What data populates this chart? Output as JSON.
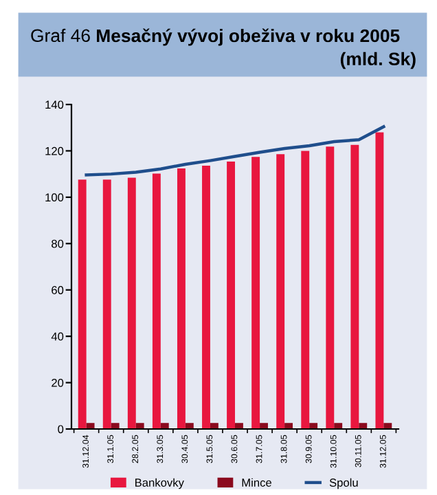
{
  "chart_data": {
    "type": "bar",
    "title": "Graf 46 Mesačný vývoj obeživa v roku 2005",
    "subtitle": "(mld. Sk)",
    "categories": [
      "31.12.04",
      "31.1.05",
      "28.2.05",
      "31.3.05",
      "30.4.05",
      "31.5.05",
      "30.6.05",
      "31.7.05",
      "31.8.05",
      "30.9.05",
      "31.10.05",
      "30.11.05",
      "31.12.05"
    ],
    "series": [
      {
        "name": "Bankovky",
        "color": "#e8173f",
        "values": [
          107.6,
          107.6,
          108.4,
          110.2,
          112.4,
          113.6,
          115.4,
          117.4,
          118.6,
          120.0,
          121.8,
          122.6,
          128.0
        ]
      },
      {
        "name": "Mince",
        "color": "#8b0a1e",
        "values": [
          2.6,
          2.6,
          2.6,
          2.6,
          2.6,
          2.6,
          2.6,
          2.6,
          2.6,
          2.6,
          2.6,
          2.6,
          2.6
        ]
      },
      {
        "name": "Spolu",
        "type": "line",
        "color": "#1f4e8c",
        "values": [
          109.6,
          110.0,
          110.8,
          112.2,
          114.2,
          115.8,
          117.6,
          119.4,
          121.0,
          122.2,
          124.0,
          124.8,
          130.4
        ]
      }
    ],
    "ylim": [
      0,
      140
    ],
    "yticks": [
      0,
      20,
      40,
      60,
      80,
      100,
      120,
      140
    ],
    "grid": false,
    "legend": "bottom"
  }
}
